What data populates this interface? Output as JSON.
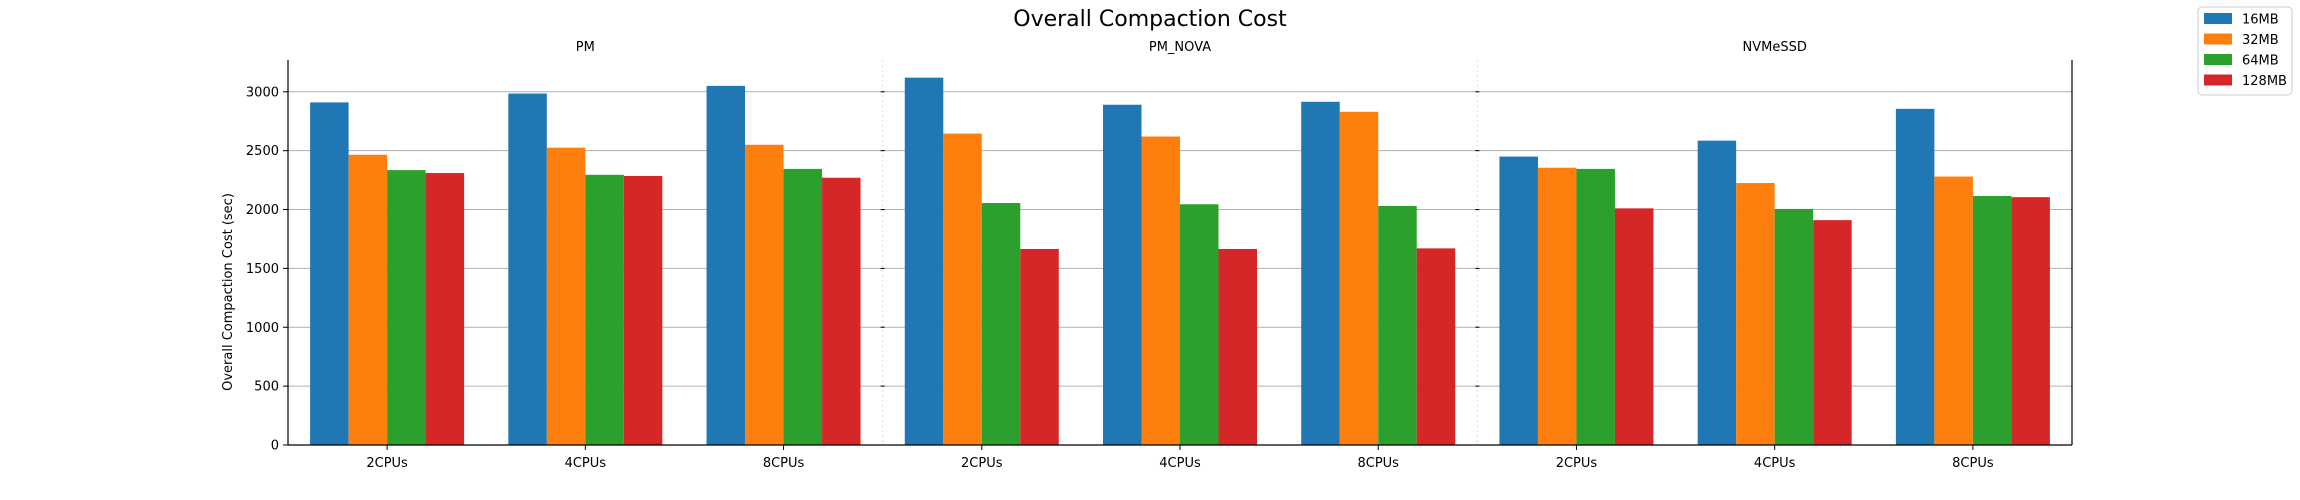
{
  "chart_data": {
    "type": "bar",
    "title": "Overall Compaction Cost",
    "ylabel": "Overall Compaction Cost (sec)",
    "xlabel": "",
    "ylim": [
      0,
      3270
    ],
    "yticks": [
      0,
      500,
      1000,
      1500,
      2000,
      2500,
      3000
    ],
    "grid": "horizontal",
    "legend_position": "top-right",
    "colors": [
      "#1f77b4",
      "#ff7f0e",
      "#2ca02c",
      "#d62728"
    ],
    "series_names": [
      "16MB",
      "32MB",
      "64MB",
      "128MB"
    ],
    "panels": [
      {
        "name": "PM",
        "categories": [
          "2CPUs",
          "4CPUs",
          "8CPUs"
        ],
        "series": [
          {
            "name": "16MB",
            "values": [
              2910,
              2985,
              3050
            ]
          },
          {
            "name": "32MB",
            "values": [
              2465,
              2525,
              2550
            ]
          },
          {
            "name": "64MB",
            "values": [
              2335,
              2295,
              2345
            ]
          },
          {
            "name": "128MB",
            "values": [
              2310,
              2285,
              2270
            ]
          }
        ]
      },
      {
        "name": "PM_NOVA",
        "categories": [
          "2CPUs",
          "4CPUs",
          "8CPUs"
        ],
        "series": [
          {
            "name": "16MB",
            "values": [
              3120,
              2890,
              2915
            ]
          },
          {
            "name": "32MB",
            "values": [
              2645,
              2620,
              2830
            ]
          },
          {
            "name": "64MB",
            "values": [
              2055,
              2045,
              2030
            ]
          },
          {
            "name": "128MB",
            "values": [
              1665,
              1665,
              1670
            ]
          }
        ]
      },
      {
        "name": "NVMeSSD",
        "categories": [
          "2CPUs",
          "4CPUs",
          "8CPUs"
        ],
        "series": [
          {
            "name": "16MB",
            "values": [
              2450,
              2585,
              2855
            ]
          },
          {
            "name": "32MB",
            "values": [
              2355,
              2225,
              2280
            ]
          },
          {
            "name": "64MB",
            "values": [
              2345,
              2005,
              2115
            ]
          },
          {
            "name": "128MB",
            "values": [
              2010,
              1910,
              2105
            ]
          }
        ]
      }
    ]
  }
}
